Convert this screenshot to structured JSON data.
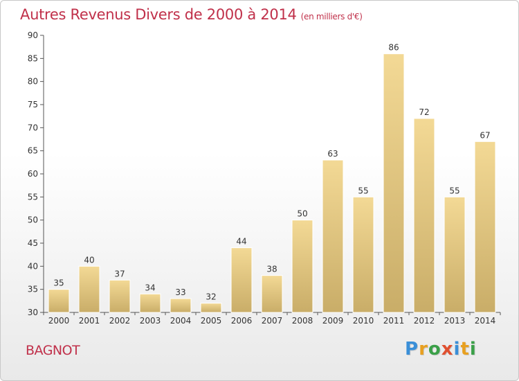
{
  "header": {
    "title": "Autres Revenus Divers de 2000 à 2014",
    "subtitle": "(en milliers d'€)"
  },
  "footer": {
    "commune": "BAGNOT",
    "logo_letters": [
      {
        "ch": "P",
        "color": "#3a8fd8"
      },
      {
        "ch": "r",
        "color": "#e8a020"
      },
      {
        "ch": "o",
        "color": "#3aa048"
      },
      {
        "ch": "x",
        "color": "#e05030"
      },
      {
        "ch": "i",
        "color": "#3a8fd8"
      },
      {
        "ch": "t",
        "color": "#e8a020"
      },
      {
        "ch": "i",
        "color": "#3aa048"
      }
    ]
  },
  "chart_data": {
    "type": "bar",
    "title": "Autres Revenus Divers de 2000 à 2014",
    "subtitle": "(en milliers d'€)",
    "xlabel": "",
    "ylabel": "",
    "categories": [
      "2000",
      "2001",
      "2002",
      "2003",
      "2004",
      "2005",
      "2006",
      "2007",
      "2008",
      "2009",
      "2010",
      "2011",
      "2012",
      "2013",
      "2014"
    ],
    "values": [
      35,
      40,
      37,
      34,
      33,
      32,
      44,
      38,
      50,
      63,
      55,
      86,
      72,
      55,
      67
    ],
    "ylim": [
      30,
      90
    ],
    "yticks": [
      30,
      35,
      40,
      45,
      50,
      55,
      60,
      65,
      70,
      75,
      80,
      85,
      90
    ],
    "grid": false,
    "legend": "none",
    "colors": {
      "bar_top": "#f3d995",
      "bar_bottom": "#c9ad68",
      "axis": "#555555"
    }
  }
}
